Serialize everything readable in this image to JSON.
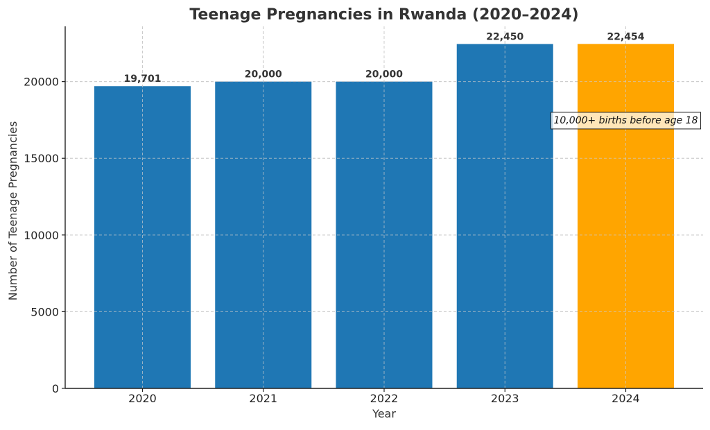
{
  "chart_data": {
    "type": "bar",
    "title": "Teenage Pregnancies in Rwanda (2020–2024)",
    "xlabel": "Year",
    "ylabel": "Number of Teenage Pregnancies",
    "categories": [
      "2020",
      "2021",
      "2022",
      "2023",
      "2024"
    ],
    "values": [
      19701,
      20000,
      20000,
      22450,
      22454
    ],
    "value_labels": [
      "19,701",
      "20,000",
      "20,000",
      "22,450",
      "22,454"
    ],
    "bar_colors": [
      "#1f77b4",
      "#1f77b4",
      "#1f77b4",
      "#1f77b4",
      "#ffa500"
    ],
    "ylim": [
      0,
      23600
    ],
    "yticks": [
      0,
      5000,
      10000,
      15000,
      20000
    ],
    "ytick_labels": [
      "0",
      "5000",
      "10000",
      "15000",
      "20000"
    ],
    "grid": true,
    "annotation": {
      "text": "10,000+ births before age 18",
      "category": "2024",
      "y": 17500
    }
  }
}
